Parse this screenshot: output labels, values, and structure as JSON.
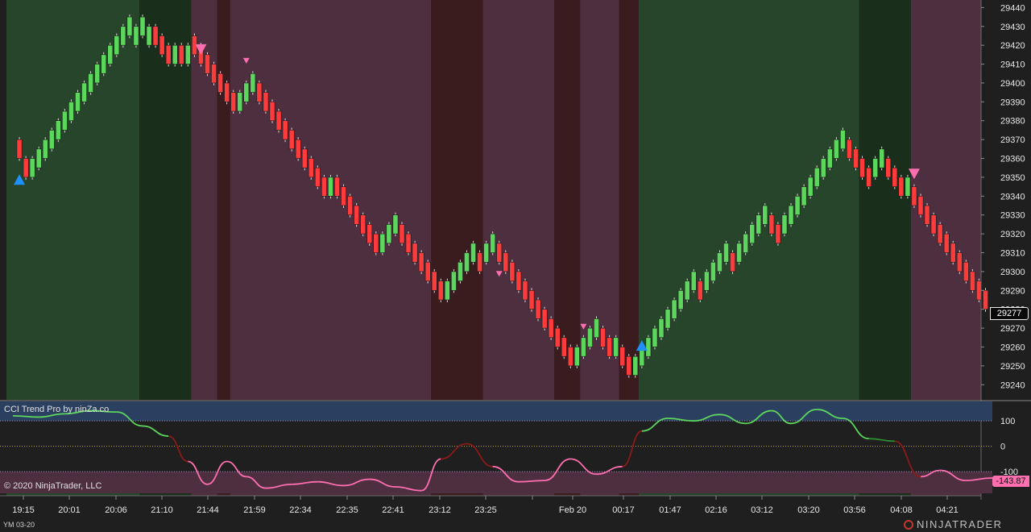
{
  "window": {
    "instrument": "YM 03-20",
    "copyright": "© 2020 NinjaTrader, LLC",
    "logo_text": "NINJATRADER"
  },
  "indicator": {
    "title": "CCI Trend Pro by ninZa.co",
    "levels": [
      "100",
      "0",
      "-100"
    ],
    "current_value": "-143.87"
  },
  "price_axis": {
    "ticks": [
      "29440",
      "29430",
      "29420",
      "29410",
      "29400",
      "29390",
      "29380",
      "29370",
      "29360",
      "29350",
      "29340",
      "29330",
      "29320",
      "29310",
      "29300",
      "29290",
      "29280",
      "29270",
      "29260",
      "29250",
      "29240"
    ],
    "current_price": "29277"
  },
  "time_axis": {
    "labels": [
      "19:15",
      "20:01",
      "20:06",
      "21:10",
      "21:44",
      "21:59",
      "22:34",
      "22:35",
      "22:41",
      "23:12",
      "23:25",
      "Feb 20",
      "00:17",
      "01:47",
      "02:16",
      "03:12",
      "03:20",
      "03:56",
      "04:08",
      "04:21"
    ]
  },
  "colors": {
    "up_candle": "#5cd65c",
    "down_candle": "#ff3b3b",
    "bull_zone": "#27452a",
    "bull_zone_dark": "#1a2e1c",
    "bear_zone": "#4e2f40",
    "bear_zone_dark": "#3a1c1f",
    "buy_arrow": "#1e90ff",
    "sell_arrow": "#ff6fb0",
    "cci_up": "#5cd65c",
    "cci_down": "#ff6fb0",
    "cci_upper_band": "#2b4060",
    "cci_lower_band": "#4e2f40"
  },
  "chart_data": {
    "type": "candlestick",
    "y_range": [
      29232,
      29444
    ],
    "bricks": [
      [
        1,
        29370,
        29360
      ],
      [
        2,
        29360,
        29350
      ],
      [
        3,
        29350,
        29360
      ],
      [
        4,
        29355,
        29365
      ],
      [
        5,
        29360,
        29370
      ],
      [
        6,
        29365,
        29375
      ],
      [
        7,
        29370,
        29380
      ],
      [
        8,
        29375,
        29385
      ],
      [
        9,
        29380,
        29390
      ],
      [
        10,
        29385,
        29395
      ],
      [
        11,
        29390,
        29400
      ],
      [
        12,
        29395,
        29405
      ],
      [
        13,
        29400,
        29410
      ],
      [
        14,
        29405,
        29415
      ],
      [
        15,
        29410,
        29420
      ],
      [
        16,
        29415,
        29425
      ],
      [
        17,
        29420,
        29430
      ],
      [
        18,
        29425,
        29435
      ],
      [
        19,
        29420,
        29430
      ],
      [
        20,
        29425,
        29435
      ],
      [
        21,
        29420,
        29430
      ],
      [
        22,
        29430,
        29420
      ],
      [
        23,
        29425,
        29415
      ],
      [
        24,
        29420,
        29410
      ],
      [
        25,
        29410,
        29420
      ],
      [
        26,
        29420,
        29410
      ],
      [
        27,
        29410,
        29420
      ],
      [
        28,
        29425,
        29415
      ],
      [
        29,
        29420,
        29410
      ],
      [
        30,
        29415,
        29405
      ],
      [
        31,
        29410,
        29400
      ],
      [
        32,
        29405,
        29395
      ],
      [
        33,
        29400,
        29390
      ],
      [
        34,
        29395,
        29385
      ],
      [
        35,
        29385,
        29395
      ],
      [
        36,
        29390,
        29400
      ],
      [
        37,
        29395,
        29405
      ],
      [
        38,
        29400,
        29390
      ],
      [
        39,
        29395,
        29385
      ],
      [
        40,
        29390,
        29380
      ],
      [
        41,
        29385,
        29375
      ],
      [
        42,
        29380,
        29370
      ],
      [
        43,
        29375,
        29365
      ],
      [
        44,
        29370,
        29360
      ],
      [
        45,
        29365,
        29355
      ],
      [
        46,
        29360,
        29350
      ],
      [
        47,
        29355,
        29345
      ],
      [
        48,
        29350,
        29340
      ],
      [
        49,
        29340,
        29350
      ],
      [
        50,
        29350,
        29340
      ],
      [
        51,
        29345,
        29335
      ],
      [
        52,
        29340,
        29330
      ],
      [
        53,
        29335,
        29325
      ],
      [
        54,
        29330,
        29320
      ],
      [
        55,
        29325,
        29315
      ],
      [
        56,
        29320,
        29310
      ],
      [
        57,
        29310,
        29320
      ],
      [
        58,
        29315,
        29325
      ],
      [
        59,
        29320,
        29330
      ],
      [
        60,
        29325,
        29315
      ],
      [
        61,
        29320,
        29310
      ],
      [
        62,
        29315,
        29305
      ],
      [
        63,
        29310,
        29300
      ],
      [
        64,
        29305,
        29295
      ],
      [
        65,
        29300,
        29290
      ],
      [
        66,
        29295,
        29285
      ],
      [
        67,
        29285,
        29295
      ],
      [
        68,
        29290,
        29300
      ],
      [
        69,
        29295,
        29305
      ],
      [
        70,
        29300,
        29310
      ],
      [
        71,
        29305,
        29315
      ],
      [
        72,
        29310,
        29300
      ],
      [
        73,
        29305,
        29315
      ],
      [
        74,
        29310,
        29320
      ],
      [
        75,
        29315,
        29305
      ],
      [
        76,
        29310,
        29300
      ],
      [
        77,
        29305,
        29295
      ],
      [
        78,
        29300,
        29290
      ],
      [
        79,
        29295,
        29285
      ],
      [
        80,
        29290,
        29280
      ],
      [
        81,
        29285,
        29275
      ],
      [
        82,
        29280,
        29270
      ],
      [
        83,
        29275,
        29265
      ],
      [
        84,
        29270,
        29260
      ],
      [
        85,
        29265,
        29255
      ],
      [
        86,
        29260,
        29250
      ],
      [
        87,
        29250,
        29260
      ],
      [
        88,
        29255,
        29265
      ],
      [
        89,
        29260,
        29270
      ],
      [
        90,
        29265,
        29275
      ],
      [
        91,
        29270,
        29260
      ],
      [
        92,
        29265,
        29255
      ],
      [
        93,
        29255,
        29265
      ],
      [
        94,
        29260,
        29250
      ],
      [
        95,
        29255,
        29245
      ],
      [
        96,
        29245,
        29255
      ],
      [
        97,
        29250,
        29260
      ],
      [
        98,
        29255,
        29265
      ],
      [
        99,
        29260,
        29270
      ],
      [
        100,
        29265,
        29275
      ],
      [
        101,
        29270,
        29280
      ],
      [
        102,
        29275,
        29285
      ],
      [
        103,
        29280,
        29290
      ],
      [
        104,
        29285,
        29295
      ],
      [
        105,
        29290,
        29300
      ],
      [
        106,
        29295,
        29285
      ],
      [
        107,
        29290,
        29300
      ],
      [
        108,
        29295,
        29305
      ],
      [
        109,
        29300,
        29310
      ],
      [
        110,
        29305,
        29315
      ],
      [
        111,
        29310,
        29300
      ],
      [
        112,
        29305,
        29315
      ],
      [
        113,
        29310,
        29320
      ],
      [
        114,
        29315,
        29325
      ],
      [
        115,
        29320,
        29330
      ],
      [
        116,
        29325,
        29335
      ],
      [
        117,
        29330,
        29320
      ],
      [
        118,
        29325,
        29315
      ],
      [
        119,
        29320,
        29330
      ],
      [
        120,
        29325,
        29335
      ],
      [
        121,
        29330,
        29340
      ],
      [
        122,
        29335,
        29345
      ],
      [
        123,
        29340,
        29350
      ],
      [
        124,
        29345,
        29355
      ],
      [
        125,
        29350,
        29360
      ],
      [
        126,
        29355,
        29365
      ],
      [
        127,
        29360,
        29370
      ],
      [
        128,
        29365,
        29375
      ],
      [
        129,
        29370,
        29360
      ],
      [
        130,
        29365,
        29355
      ],
      [
        131,
        29360,
        29350
      ],
      [
        132,
        29355,
        29345
      ],
      [
        133,
        29350,
        29360
      ],
      [
        134,
        29355,
        29365
      ],
      [
        135,
        29360,
        29350
      ],
      [
        136,
        29355,
        29345
      ],
      [
        137,
        29350,
        29340
      ],
      [
        138,
        29340,
        29350
      ],
      [
        139,
        29345,
        29335
      ],
      [
        140,
        29340,
        29330
      ],
      [
        141,
        29335,
        29325
      ],
      [
        142,
        29330,
        29320
      ],
      [
        143,
        29325,
        29315
      ],
      [
        144,
        29320,
        29310
      ],
      [
        145,
        29315,
        29305
      ],
      [
        146,
        29310,
        29300
      ],
      [
        147,
        29305,
        29295
      ],
      [
        148,
        29300,
        29290
      ],
      [
        149,
        29295,
        29285
      ],
      [
        150,
        29290,
        29280
      ]
    ],
    "signals": [
      {
        "bar": 1,
        "type": "buy",
        "price": 29349
      },
      {
        "bar": 29,
        "type": "sell",
        "price": 29418
      },
      {
        "bar": 36,
        "type": "sell-small",
        "price": 29412
      },
      {
        "bar": 75,
        "type": "sell-small",
        "price": 29299
      },
      {
        "bar": 88,
        "type": "sell-small",
        "price": 29271
      },
      {
        "bar": 97,
        "type": "buy",
        "price": 29261
      },
      {
        "bar": 139,
        "type": "sell",
        "price": 29352
      }
    ],
    "zones": [
      {
        "from": 0,
        "to": 20,
        "state": "bull"
      },
      {
        "from": 20,
        "to": 28,
        "state": "bull-weak"
      },
      {
        "from": 28,
        "to": 32,
        "state": "bear"
      },
      {
        "from": 32,
        "to": 34,
        "state": "bear-strong"
      },
      {
        "from": 34,
        "to": 65,
        "state": "bear"
      },
      {
        "from": 65,
        "to": 73,
        "state": "bear-strong"
      },
      {
        "from": 73,
        "to": 84,
        "state": "bear"
      },
      {
        "from": 84,
        "to": 88,
        "state": "bear-strong"
      },
      {
        "from": 88,
        "to": 94,
        "state": "bear"
      },
      {
        "from": 94,
        "to": 97,
        "state": "bear-strong"
      },
      {
        "from": 97,
        "to": 131,
        "state": "bull"
      },
      {
        "from": 131,
        "to": 139,
        "state": "bull-weak"
      },
      {
        "from": 139,
        "to": 155,
        "state": "bear"
      }
    ],
    "cci": {
      "y_range": [
        -195,
        180
      ],
      "points": [
        [
          0,
          120
        ],
        [
          4,
          115
        ],
        [
          8,
          128
        ],
        [
          12,
          140
        ],
        [
          16,
          135
        ],
        [
          20,
          80
        ],
        [
          24,
          40
        ],
        [
          27,
          -60
        ],
        [
          30,
          -150
        ],
        [
          33,
          -60
        ],
        [
          36,
          -120
        ],
        [
          39,
          -165
        ],
        [
          43,
          -150
        ],
        [
          47,
          -140
        ],
        [
          51,
          -155
        ],
        [
          55,
          -130
        ],
        [
          59,
          -160
        ],
        [
          63,
          -175
        ],
        [
          66,
          -50
        ],
        [
          70,
          10
        ],
        [
          74,
          -80
        ],
        [
          78,
          -140
        ],
        [
          82,
          -135
        ],
        [
          86,
          -50
        ],
        [
          90,
          -110
        ],
        [
          94,
          -80
        ],
        [
          97,
          60
        ],
        [
          101,
          110
        ],
        [
          105,
          100
        ],
        [
          109,
          125
        ],
        [
          113,
          90
        ],
        [
          117,
          140
        ],
        [
          120,
          90
        ],
        [
          124,
          145
        ],
        [
          128,
          110
        ],
        [
          132,
          30
        ],
        [
          136,
          20
        ],
        [
          140,
          -120
        ],
        [
          143,
          -95
        ],
        [
          147,
          -135
        ],
        [
          151,
          -125
        ],
        [
          155,
          -130
        ]
      ]
    }
  }
}
